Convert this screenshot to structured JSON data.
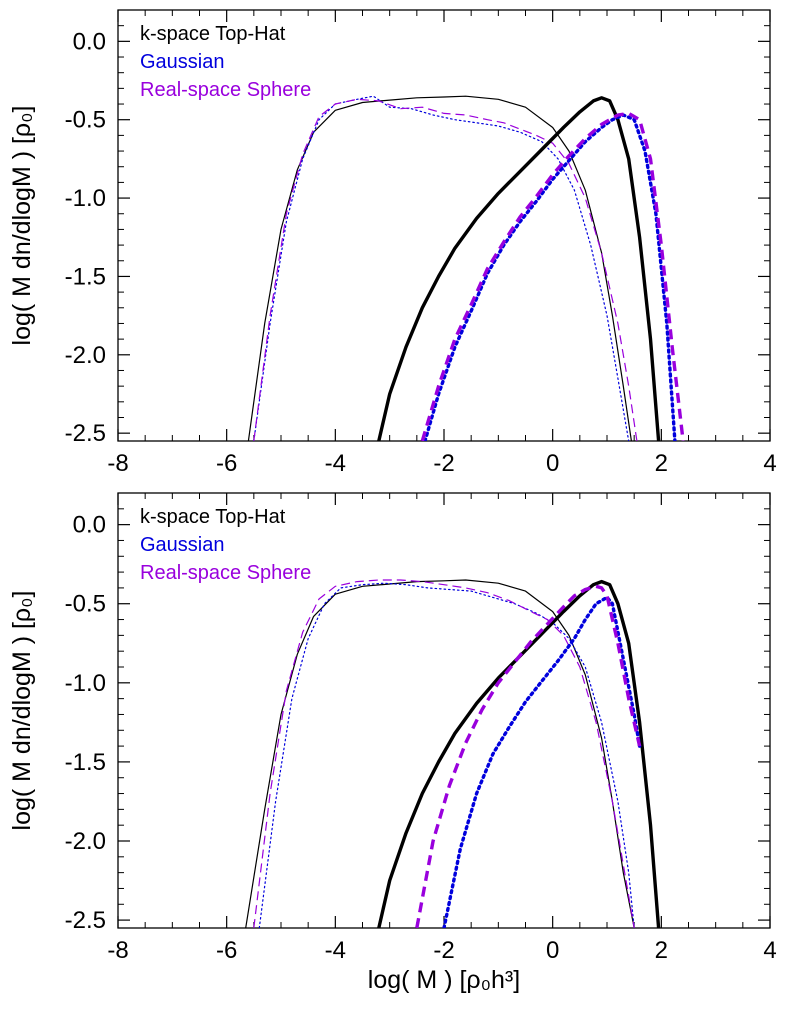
{
  "chart_data": [
    {
      "type": "line",
      "panel": "top",
      "xlim": [
        -8,
        4
      ],
      "ylim": [
        -2.55,
        0.2
      ],
      "xticks": [
        -8,
        -6,
        -4,
        -2,
        0,
        2,
        4
      ],
      "yticks": [
        0.0,
        -0.5,
        -1.0,
        -1.5,
        -2.0,
        -2.5
      ],
      "xtick_labels": [
        "-8",
        "-6",
        "-4",
        "-2",
        "0",
        "2",
        "4"
      ],
      "ytick_labels": [
        "0.0",
        "-0.5",
        "-1.0",
        "-1.5",
        "-2.0",
        "-2.5"
      ],
      "xlabel": "",
      "ylabel": "log( M dn/dlogM )   [ρ₀]",
      "legend_position": "top-left",
      "legend": [
        {
          "label": "k-space Top-Hat",
          "color": "#000000"
        },
        {
          "label": "Gaussian",
          "color": "#0000dd"
        },
        {
          "label": "Real-space Sphere",
          "color": "#9900dd"
        }
      ],
      "series": [
        {
          "color": "#000000",
          "style": "solid",
          "weight": "thin",
          "x": [
            -5.6,
            -5.3,
            -5.0,
            -4.7,
            -4.4,
            -4.0,
            -3.5,
            -3.0,
            -2.5,
            -2.0,
            -1.6,
            -1.0,
            -0.5,
            0.0,
            0.3,
            0.6,
            0.9,
            1.1,
            1.3,
            1.45
          ],
          "y": [
            -2.55,
            -1.8,
            -1.2,
            -0.82,
            -0.58,
            -0.44,
            -0.39,
            -0.375,
            -0.36,
            -0.355,
            -0.35,
            -0.37,
            -0.42,
            -0.55,
            -0.7,
            -0.95,
            -1.35,
            -1.75,
            -2.2,
            -2.55
          ]
        },
        {
          "color": "#0000dd",
          "style": "dotted",
          "weight": "thin",
          "x": [
            -5.5,
            -5.2,
            -4.9,
            -4.6,
            -4.3,
            -4.0,
            -3.6,
            -3.3,
            -3.0,
            -2.6,
            -2.2,
            -1.8,
            -1.4,
            -1.0,
            -0.6,
            -0.2,
            0.1,
            0.4,
            0.7,
            1.0,
            1.2,
            1.4
          ],
          "y": [
            -2.55,
            -1.8,
            -1.15,
            -0.75,
            -0.5,
            -0.4,
            -0.37,
            -0.35,
            -0.42,
            -0.43,
            -0.47,
            -0.5,
            -0.52,
            -0.54,
            -0.58,
            -0.64,
            -0.75,
            -0.95,
            -1.3,
            -1.75,
            -2.15,
            -2.55
          ]
        },
        {
          "color": "#9900dd",
          "style": "dashed",
          "weight": "thin",
          "x": [
            -5.5,
            -5.2,
            -4.9,
            -4.6,
            -4.3,
            -4.0,
            -3.6,
            -3.2,
            -2.8,
            -2.4,
            -2.0,
            -1.6,
            -1.2,
            -0.9,
            -0.6,
            -0.3,
            0.0,
            0.3,
            0.6,
            0.9,
            1.2,
            1.4,
            1.55
          ],
          "y": [
            -2.55,
            -1.75,
            -1.1,
            -0.72,
            -0.48,
            -0.4,
            -0.37,
            -0.38,
            -0.43,
            -0.42,
            -0.46,
            -0.47,
            -0.5,
            -0.52,
            -0.56,
            -0.6,
            -0.65,
            -0.78,
            -1.0,
            -1.35,
            -1.8,
            -2.2,
            -2.55
          ]
        },
        {
          "color": "#000000",
          "style": "solid",
          "weight": "thick",
          "x": [
            -3.2,
            -3.0,
            -2.7,
            -2.4,
            -2.1,
            -1.8,
            -1.4,
            -1.0,
            -0.6,
            -0.2,
            0.2,
            0.5,
            0.75,
            0.9,
            1.05,
            1.2,
            1.4,
            1.6,
            1.8,
            1.95
          ],
          "y": [
            -2.55,
            -2.25,
            -1.95,
            -1.7,
            -1.5,
            -1.32,
            -1.13,
            -0.97,
            -0.83,
            -0.69,
            -0.55,
            -0.45,
            -0.38,
            -0.36,
            -0.38,
            -0.5,
            -0.75,
            -1.25,
            -1.9,
            -2.55
          ]
        },
        {
          "color": "#0000dd",
          "style": "dotted",
          "weight": "thick",
          "x": [
            -2.35,
            -2.1,
            -1.8,
            -1.5,
            -1.2,
            -0.9,
            -0.6,
            -0.3,
            0.0,
            0.3,
            0.6,
            0.9,
            1.1,
            1.3,
            1.5,
            1.7,
            1.9,
            2.1,
            2.25
          ],
          "y": [
            -2.55,
            -2.25,
            -1.95,
            -1.72,
            -1.48,
            -1.3,
            -1.15,
            -1.02,
            -0.88,
            -0.76,
            -0.64,
            -0.55,
            -0.5,
            -0.47,
            -0.5,
            -0.7,
            -1.1,
            -1.8,
            -2.55
          ]
        },
        {
          "color": "#9900dd",
          "style": "dashed",
          "weight": "thick",
          "x": [
            -2.4,
            -2.1,
            -1.8,
            -1.5,
            -1.2,
            -0.9,
            -0.6,
            -0.3,
            0.0,
            0.3,
            0.6,
            0.9,
            1.2,
            1.4,
            1.6,
            1.8,
            2.0,
            2.2,
            2.4
          ],
          "y": [
            -2.55,
            -2.2,
            -1.9,
            -1.68,
            -1.45,
            -1.28,
            -1.12,
            -0.99,
            -0.85,
            -0.73,
            -0.62,
            -0.53,
            -0.47,
            -0.46,
            -0.5,
            -0.75,
            -1.3,
            -1.95,
            -2.55
          ]
        }
      ]
    },
    {
      "type": "line",
      "panel": "bottom",
      "xlim": [
        -8,
        4
      ],
      "ylim": [
        -2.55,
        0.2
      ],
      "xticks": [
        -8,
        -6,
        -4,
        -2,
        0,
        2,
        4
      ],
      "yticks": [
        0.0,
        -0.5,
        -1.0,
        -1.5,
        -2.0,
        -2.5
      ],
      "xtick_labels": [
        "-8",
        "-6",
        "-4",
        "-2",
        "0",
        "2",
        "4"
      ],
      "ytick_labels": [
        "0.0",
        "-0.5",
        "-1.0",
        "-1.5",
        "-2.0",
        "-2.5"
      ],
      "xlabel": "log( M )   [ρ₀h³]",
      "ylabel": "log( M dn/dlogM )   [ρ₀]",
      "legend_position": "top-left",
      "legend": [
        {
          "label": "k-space Top-Hat",
          "color": "#000000"
        },
        {
          "label": "Gaussian",
          "color": "#0000dd"
        },
        {
          "label": "Real-space Sphere",
          "color": "#9900dd"
        }
      ],
      "series": [
        {
          "color": "#000000",
          "style": "solid",
          "weight": "thin",
          "x": [
            -5.65,
            -5.3,
            -5.0,
            -4.7,
            -4.4,
            -4.0,
            -3.5,
            -3.0,
            -2.5,
            -2.0,
            -1.6,
            -1.0,
            -0.5,
            0.0,
            0.3,
            0.6,
            0.9,
            1.1,
            1.3,
            1.5
          ],
          "y": [
            -2.55,
            -1.8,
            -1.2,
            -0.82,
            -0.58,
            -0.44,
            -0.39,
            -0.375,
            -0.36,
            -0.355,
            -0.35,
            -0.37,
            -0.42,
            -0.55,
            -0.7,
            -0.95,
            -1.35,
            -1.75,
            -2.2,
            -2.55
          ]
        },
        {
          "color": "#0000dd",
          "style": "dotted",
          "weight": "thin",
          "x": [
            -5.4,
            -5.1,
            -4.8,
            -4.5,
            -4.2,
            -3.9,
            -3.5,
            -3.1,
            -2.7,
            -2.3,
            -1.9,
            -1.5,
            -1.1,
            -0.7,
            -0.3,
            0.0,
            0.3,
            0.6,
            0.9,
            1.2,
            1.4,
            1.5
          ],
          "y": [
            -2.55,
            -1.75,
            -1.1,
            -0.72,
            -0.5,
            -0.4,
            -0.38,
            -0.37,
            -0.38,
            -0.4,
            -0.41,
            -0.42,
            -0.46,
            -0.5,
            -0.56,
            -0.62,
            -0.72,
            -0.9,
            -1.25,
            -1.75,
            -2.2,
            -2.55
          ]
        },
        {
          "color": "#9900dd",
          "style": "dashed",
          "weight": "thin",
          "x": [
            -5.5,
            -5.2,
            -4.9,
            -4.6,
            -4.3,
            -4.0,
            -3.6,
            -3.2,
            -2.8,
            -2.4,
            -2.0,
            -1.6,
            -1.2,
            -0.8,
            -0.4,
            -0.1,
            0.2,
            0.5,
            0.8,
            1.1,
            1.3,
            1.5
          ],
          "y": [
            -2.55,
            -1.7,
            -1.05,
            -0.68,
            -0.47,
            -0.39,
            -0.36,
            -0.35,
            -0.35,
            -0.36,
            -0.38,
            -0.4,
            -0.43,
            -0.48,
            -0.55,
            -0.6,
            -0.7,
            -0.9,
            -1.25,
            -1.75,
            -2.15,
            -2.55
          ]
        },
        {
          "color": "#000000",
          "style": "solid",
          "weight": "thick",
          "x": [
            -3.2,
            -3.0,
            -2.7,
            -2.4,
            -2.1,
            -1.8,
            -1.4,
            -1.0,
            -0.6,
            -0.2,
            0.2,
            0.5,
            0.75,
            0.9,
            1.05,
            1.2,
            1.4,
            1.6,
            1.8,
            1.95
          ],
          "y": [
            -2.55,
            -2.25,
            -1.95,
            -1.7,
            -1.5,
            -1.32,
            -1.13,
            -0.97,
            -0.83,
            -0.69,
            -0.55,
            -0.45,
            -0.38,
            -0.36,
            -0.38,
            -0.5,
            -0.75,
            -1.25,
            -1.9,
            -2.55
          ]
        },
        {
          "color": "#0000dd",
          "style": "dotted",
          "weight": "thick",
          "x": [
            -2.0,
            -1.7,
            -1.4,
            -1.1,
            -0.8,
            -0.5,
            -0.2,
            0.1,
            0.4,
            0.6,
            0.8,
            1.0,
            1.1,
            1.3,
            1.5,
            1.6
          ],
          "y": [
            -2.55,
            -2.05,
            -1.7,
            -1.45,
            -1.28,
            -1.12,
            -0.99,
            -0.86,
            -0.72,
            -0.6,
            -0.5,
            -0.46,
            -0.5,
            -0.85,
            -1.2,
            -1.4
          ]
        },
        {
          "color": "#9900dd",
          "style": "dashed",
          "weight": "thick",
          "x": [
            -2.5,
            -2.2,
            -1.9,
            -1.6,
            -1.3,
            -1.0,
            -0.7,
            -0.4,
            -0.1,
            0.2,
            0.4,
            0.6,
            0.8,
            0.9,
            1.0,
            1.2,
            1.4,
            1.6
          ],
          "y": [
            -2.55,
            -2.0,
            -1.65,
            -1.38,
            -1.17,
            -1.0,
            -0.87,
            -0.74,
            -0.63,
            -0.52,
            -0.45,
            -0.41,
            -0.39,
            -0.4,
            -0.45,
            -0.75,
            -1.1,
            -1.4
          ]
        }
      ]
    }
  ]
}
